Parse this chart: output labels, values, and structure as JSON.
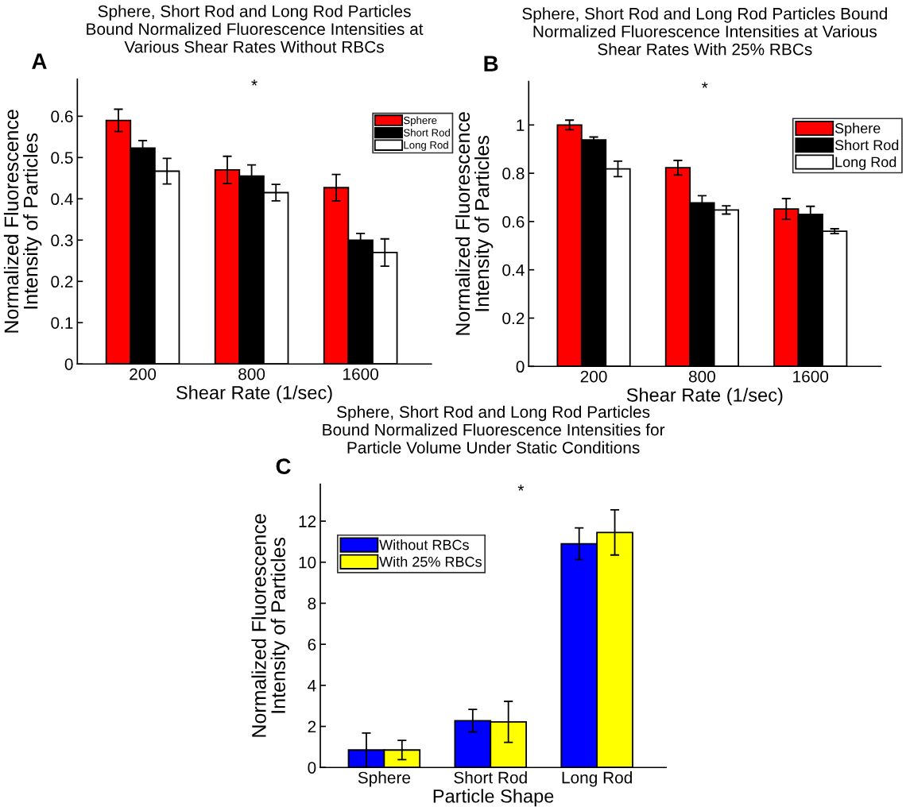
{
  "chart_data": [
    {
      "type": "bar",
      "title": "Sphere, Short Rod and Long Rod Particles\nBound Normalized Fluorescence Intensities at\nVarious Shear Rates Without RBCs",
      "xlabel": "Shear Rate (1/sec)",
      "ylabel": "Normalized Fluorescence\nIntensity of Particles",
      "categories": [
        "200",
        "800",
        "1600"
      ],
      "series": [
        {
          "name": "Sphere",
          "color": "#ff0000",
          "values": [
            0.59,
            0.47,
            0.427
          ],
          "errors": [
            0.027,
            0.033,
            0.032
          ]
        },
        {
          "name": "Short Rod",
          "color": "#000000",
          "values": [
            0.523,
            0.455,
            0.3
          ],
          "errors": [
            0.018,
            0.027,
            0.016
          ]
        },
        {
          "name": "Long Rod",
          "color": "#ffffff",
          "values": [
            0.467,
            0.415,
            0.27
          ],
          "errors": [
            0.031,
            0.02,
            0.033
          ]
        }
      ],
      "ylim": [
        0,
        0.69
      ],
      "yticks": [
        0,
        0.1,
        0.2,
        0.3,
        0.4,
        0.5,
        0.6
      ],
      "grid": false,
      "legend": "top right",
      "annotations": [
        "A",
        "*"
      ]
    },
    {
      "type": "bar",
      "title": "Sphere, Short Rod and Long Rod Particles Bound\nNormalized Fluorescence Intensities at Various\nShear Rates With 25% RBCs",
      "xlabel": "Shear Rate (1/sec)",
      "ylabel": "Normalized Fluorescence\nIntensity of Particles",
      "categories": [
        "200",
        "800",
        "1600"
      ],
      "series": [
        {
          "name": "Sphere",
          "color": "#ff0000",
          "values": [
            1.0,
            0.823,
            0.652
          ],
          "errors": [
            0.02,
            0.03,
            0.043
          ]
        },
        {
          "name": "Short Rod",
          "color": "#000000",
          "values": [
            0.938,
            0.677,
            0.63
          ],
          "errors": [
            0.012,
            0.03,
            0.033
          ]
        },
        {
          "name": "Long Rod",
          "color": "#ffffff",
          "values": [
            0.818,
            0.648,
            0.56
          ],
          "errors": [
            0.032,
            0.017,
            0.01
          ]
        }
      ],
      "ylim": [
        0,
        1.18
      ],
      "yticks": [
        0,
        0.2,
        0.4,
        0.6,
        0.8,
        1
      ],
      "grid": false,
      "legend": "right",
      "annotations": [
        "B",
        "*"
      ]
    },
    {
      "type": "bar",
      "title": "Sphere, Short Rod and Long Rod Particles\nBound Normalized Fluorescence Intensities for\nParticle Volume Under Static Conditions",
      "xlabel": "Particle Shape",
      "ylabel": "Normalized Fluorescence\nIntensity of Particles",
      "categories": [
        "Sphere",
        "Short Rod",
        "Long Rod"
      ],
      "series": [
        {
          "name": "Without RBCs",
          "color": "#0000ff",
          "values": [
            0.85,
            2.28,
            10.9
          ],
          "errors": [
            0.83,
            0.55,
            0.77
          ]
        },
        {
          "name": "With 25% RBCs",
          "color": "#ffff00",
          "values": [
            0.85,
            2.22,
            11.45
          ],
          "errors": [
            0.47,
            1.0,
            1.1
          ]
        }
      ],
      "ylim": [
        0,
        13.8
      ],
      "yticks": [
        0,
        2,
        4,
        6,
        8,
        10,
        12
      ],
      "grid": false,
      "legend": "top left",
      "annotations": [
        "C",
        "*"
      ]
    }
  ]
}
